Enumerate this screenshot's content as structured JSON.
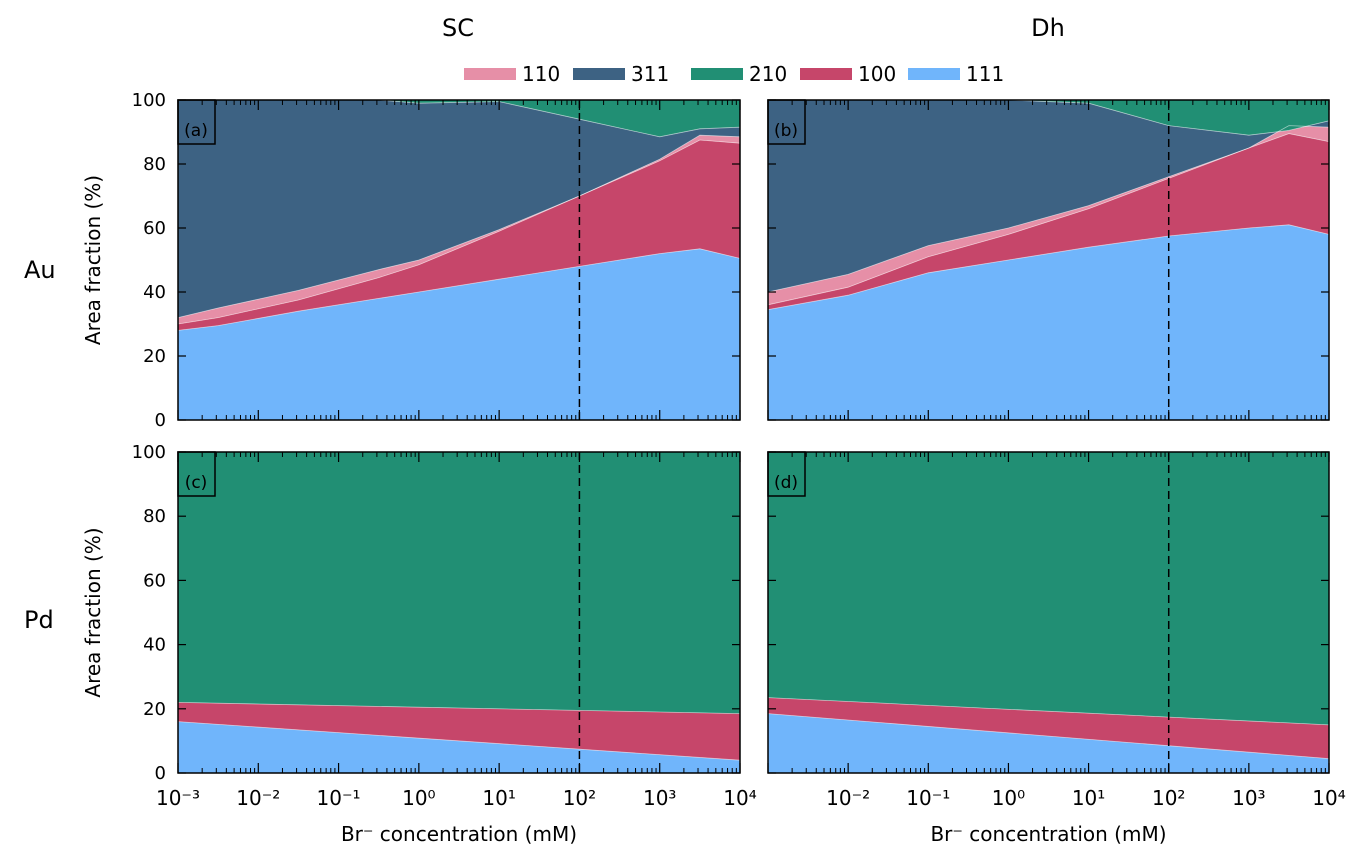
{
  "columns": [
    "SC",
    "Dh"
  ],
  "rows": [
    "Au",
    "Pd"
  ],
  "legend": [
    {
      "label": "110",
      "color": "#e68fa7"
    },
    {
      "label": "311",
      "color": "#3d6283"
    },
    {
      "label": "210",
      "color": "#218f74"
    },
    {
      "label": "100",
      "color": "#c6466a"
    },
    {
      "label": "111",
      "color": "#70b5fb"
    }
  ],
  "chart_data": [
    {
      "type": "area",
      "panel_label": "(a)",
      "column": "SC",
      "row": "Au",
      "xlabel": "Br⁻ concentration (mM)",
      "ylabel": "Area fraction (%)",
      "xscale": "log",
      "xlim": [
        -3,
        4
      ],
      "ylim": [
        0,
        100
      ],
      "xtick_labels": [
        "10⁻³",
        "10⁻²",
        "10⁻¹",
        "10⁰",
        "10¹",
        "10²",
        "10³",
        "10⁴"
      ],
      "reference_line_x_log10": 2,
      "x_log10": [
        -3,
        -2.5,
        -1.5,
        -0.5,
        0,
        1,
        2,
        3,
        3.5,
        4
      ],
      "series": [
        {
          "name": "111",
          "values": [
            28,
            29.5,
            34,
            38,
            40,
            44,
            48,
            52,
            53.5,
            50.5
          ]
        },
        {
          "name": "100",
          "values": [
            2,
            2.5,
            3.5,
            6.5,
            8.5,
            15,
            22,
            29,
            34,
            36
          ]
        },
        {
          "name": "110",
          "values": [
            2,
            3,
            3,
            2.5,
            1.5,
            0.5,
            0,
            0.5,
            1.5,
            2
          ]
        },
        {
          "name": "311",
          "values": [
            68,
            65,
            59.5,
            53,
            49,
            40,
            24,
            7,
            2,
            3
          ]
        },
        {
          "name": "210",
          "values": [
            0,
            0,
            0,
            0,
            1,
            0.5,
            6,
            11.5,
            9,
            8.5
          ]
        }
      ]
    },
    {
      "type": "area",
      "panel_label": "(b)",
      "column": "Dh",
      "row": "Au",
      "xlabel": "Br⁻ concentration (mM)",
      "ylabel": "",
      "xscale": "log",
      "xlim": [
        -3,
        4
      ],
      "ylim": [
        0,
        100
      ],
      "xtick_labels": [
        "10⁻²",
        "10⁻¹",
        "10⁰",
        "10¹",
        "10²",
        "10³",
        "10⁴"
      ],
      "reference_line_x_log10": 2,
      "x_log10": [
        -3,
        -2,
        -1,
        0,
        1,
        2,
        3,
        3.5,
        4
      ],
      "series": [
        {
          "name": "111",
          "values": [
            34.5,
            39,
            46,
            50,
            54,
            57.5,
            60,
            61,
            58
          ]
        },
        {
          "name": "100",
          "values": [
            1.5,
            2.5,
            5,
            8,
            12,
            18,
            25,
            28.5,
            29
          ]
        },
        {
          "name": "110",
          "values": [
            4,
            4,
            3.5,
            2,
            1,
            0.5,
            0,
            2.5,
            4.5
          ]
        },
        {
          "name": "311",
          "values": [
            60,
            54.5,
            45.5,
            40,
            32,
            16,
            4,
            -1.5,
            2
          ]
        },
        {
          "name": "210",
          "values": [
            0,
            0,
            0,
            0,
            1,
            8,
            11,
            9.5,
            6.5
          ]
        }
      ]
    },
    {
      "type": "area",
      "panel_label": "(c)",
      "column": "SC",
      "row": "Pd",
      "xlabel": "Br⁻ concentration (mM)",
      "ylabel": "Area fraction (%)",
      "xscale": "log",
      "xlim": [
        -3,
        4
      ],
      "ylim": [
        0,
        100
      ],
      "xtick_labels": [
        "10⁻³",
        "10⁻²",
        "10⁻¹",
        "10⁰",
        "10¹",
        "10²",
        "10³",
        "10⁴"
      ],
      "reference_line_x_log10": 2,
      "x_log10": [
        -3,
        4
      ],
      "series": [
        {
          "name": "111",
          "values": [
            16,
            4
          ]
        },
        {
          "name": "100",
          "values": [
            6,
            14.5
          ]
        },
        {
          "name": "210",
          "values": [
            78,
            81.5
          ]
        }
      ]
    },
    {
      "type": "area",
      "panel_label": "(d)",
      "column": "Dh",
      "row": "Pd",
      "xlabel": "Br⁻ concentration (mM)",
      "ylabel": "",
      "xscale": "log",
      "xlim": [
        -3,
        4
      ],
      "ylim": [
        0,
        100
      ],
      "xtick_labels": [
        "10⁻²",
        "10⁻¹",
        "10⁰",
        "10¹",
        "10²",
        "10³",
        "10⁴"
      ],
      "reference_line_x_log10": 2,
      "x_log10": [
        -3,
        4
      ],
      "series": [
        {
          "name": "111",
          "values": [
            18.5,
            4.5
          ]
        },
        {
          "name": "100",
          "values": [
            5,
            10.5
          ]
        },
        {
          "name": "210",
          "values": [
            76.5,
            85
          ]
        }
      ]
    }
  ]
}
